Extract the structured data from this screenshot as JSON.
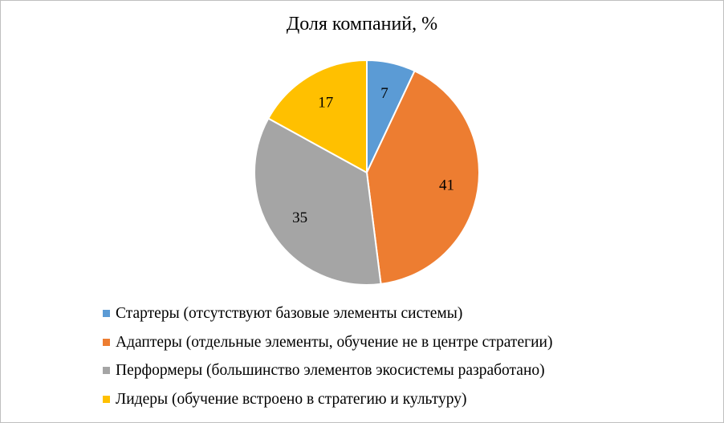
{
  "chart_data": {
    "type": "pie",
    "title": "Доля компаний, %",
    "categories": [
      "Стартеры (отсутствуют базовые элементы системы)",
      "Адаптеры (отдельные элементы, обучение не в центре стратегии)",
      "Перформеры (большинство элементов экосистемы разработано)",
      "Лидеры (обучение встроено в стратегию и культуру)"
    ],
    "values": [
      7,
      41,
      35,
      17
    ],
    "colors": [
      "#5b9bd5",
      "#ed7d31",
      "#a5a5a5",
      "#ffc000"
    ],
    "data_labels": [
      "7",
      "41",
      "35",
      "17"
    ],
    "legend_position": "bottom"
  }
}
